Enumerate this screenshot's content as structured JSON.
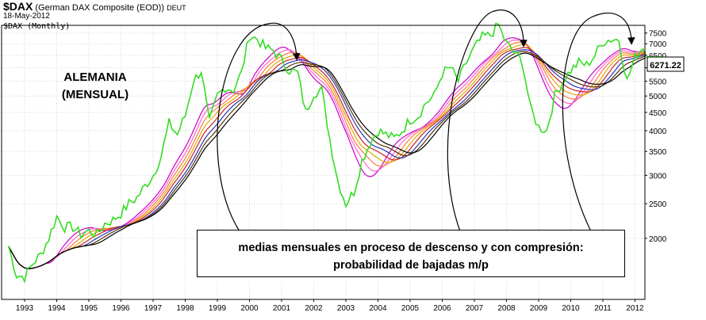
{
  "header": {
    "symbol": "$DAX",
    "name": "(German DAX Composite (EOD))",
    "exchange": "DEUT",
    "date": "18-May-2012",
    "period": "$DAX (Monthly)"
  },
  "annotation_country": "ALEMANIA",
  "annotation_period": "(MENSUAL)",
  "note_line1": "medias mensuales en proceso de descenso y con compresión:",
  "note_line2": "probabilidad de bajadas m/p",
  "last_value_label": "6271.22",
  "chart_data": {
    "type": "line",
    "scale": "log",
    "x_range": [
      1992.4,
      2012.6
    ],
    "ylim": [
      1350,
      7800
    ],
    "x_ticks": [
      "1993",
      "1994",
      "1995",
      "1996",
      "1997",
      "1998",
      "1999",
      "2000",
      "2001",
      "2002",
      "2003",
      "2004",
      "2005",
      "2006",
      "2007",
      "2008",
      "2009",
      "2010",
      "2011",
      "2012"
    ],
    "y_ticks": [
      2000,
      2500,
      3000,
      3500,
      4000,
      4500,
      5000,
      5500,
      6000,
      6500,
      7000,
      7500
    ],
    "grid": true,
    "price_series": {
      "name": "$DAX",
      "color": "#33dd22",
      "points": [
        [
          1992.5,
          1900
        ],
        [
          1992.75,
          1580
        ],
        [
          1993.0,
          1560
        ],
        [
          1993.25,
          1700
        ],
        [
          1993.5,
          1800
        ],
        [
          1993.75,
          2000
        ],
        [
          1994.0,
          2300
        ],
        [
          1994.25,
          2150
        ],
        [
          1994.5,
          2150
        ],
        [
          1994.75,
          2050
        ],
        [
          1995.0,
          2100
        ],
        [
          1995.25,
          2050
        ],
        [
          1995.5,
          2200
        ],
        [
          1995.75,
          2250
        ],
        [
          1996.0,
          2350
        ],
        [
          1996.25,
          2500
        ],
        [
          1996.5,
          2600
        ],
        [
          1996.75,
          2800
        ],
        [
          1997.0,
          3000
        ],
        [
          1997.25,
          3400
        ],
        [
          1997.5,
          4200
        ],
        [
          1997.75,
          3900
        ],
        [
          1998.0,
          4400
        ],
        [
          1998.25,
          5500
        ],
        [
          1998.5,
          5900
        ],
        [
          1998.75,
          4200
        ],
        [
          1999.0,
          5000
        ],
        [
          1999.25,
          5300
        ],
        [
          1999.5,
          5200
        ],
        [
          1999.75,
          5800
        ],
        [
          2000.0,
          7400
        ],
        [
          2000.25,
          7200
        ],
        [
          2000.5,
          6800
        ],
        [
          2000.75,
          6700
        ],
        [
          2001.0,
          6300
        ],
        [
          2001.25,
          5900
        ],
        [
          2001.5,
          5800
        ],
        [
          2001.75,
          4500
        ],
        [
          2002.0,
          5100
        ],
        [
          2002.25,
          5200
        ],
        [
          2002.5,
          3800
        ],
        [
          2002.75,
          2900
        ],
        [
          2003.0,
          2500
        ],
        [
          2003.25,
          2700
        ],
        [
          2003.5,
          3300
        ],
        [
          2003.75,
          3700
        ],
        [
          2004.0,
          4000
        ],
        [
          2004.25,
          3900
        ],
        [
          2004.5,
          3800
        ],
        [
          2004.75,
          4000
        ],
        [
          2005.0,
          4300
        ],
        [
          2005.25,
          4400
        ],
        [
          2005.5,
          4800
        ],
        [
          2005.75,
          5000
        ],
        [
          2006.0,
          5800
        ],
        [
          2006.25,
          6000
        ],
        [
          2006.5,
          5500
        ],
        [
          2006.75,
          6200
        ],
        [
          2007.0,
          6800
        ],
        [
          2007.25,
          7300
        ],
        [
          2007.5,
          7400
        ],
        [
          2007.75,
          7900
        ],
        [
          2008.0,
          7000
        ],
        [
          2008.25,
          6600
        ],
        [
          2008.5,
          6200
        ],
        [
          2008.75,
          4600
        ],
        [
          2009.0,
          4100
        ],
        [
          2009.25,
          4000
        ],
        [
          2009.5,
          5000
        ],
        [
          2009.75,
          5500
        ],
        [
          2010.0,
          5900
        ],
        [
          2010.25,
          6200
        ],
        [
          2010.5,
          6100
        ],
        [
          2010.75,
          6500
        ],
        [
          2011.0,
          7100
        ],
        [
          2011.25,
          7200
        ],
        [
          2011.5,
          7200
        ],
        [
          2011.75,
          5500
        ],
        [
          2012.0,
          6400
        ],
        [
          2012.25,
          6900
        ],
        [
          2012.37,
          6271
        ]
      ]
    },
    "moving_averages": [
      {
        "color": "#cc00cc",
        "lag": 1.2
      },
      {
        "color": "#ff66cc",
        "lag": 1.4
      },
      {
        "color": "#ff7744",
        "lag": 1.6
      },
      {
        "color": "#ddaa00",
        "lag": 1.8
      },
      {
        "color": "#cc2222",
        "lag": 2.0
      },
      {
        "color": "#2233bb",
        "lag": 2.2
      },
      {
        "color": "#553300",
        "lag": 2.4
      },
      {
        "color": "#000000",
        "lag": 2.6
      }
    ]
  }
}
